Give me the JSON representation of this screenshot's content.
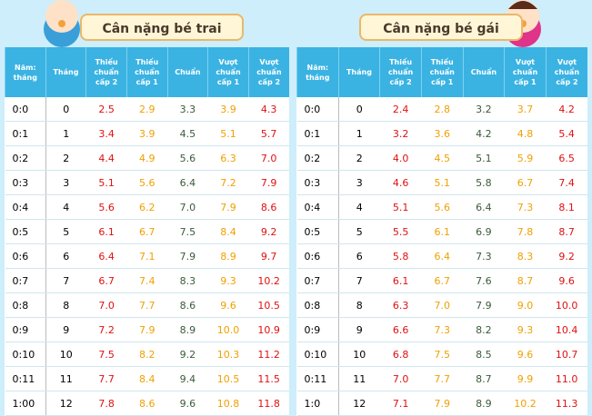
{
  "boys": {
    "title": "Cân nặng bé trai",
    "headers": [
      "Năm: tháng",
      "Tháng",
      "Thiếu chuẩn cấp 2",
      "Thiếu chuẩn cấp 1",
      "Chuẩn",
      "Vượt chuẩn cấp 1",
      "Vượt chuẩn cấp 2"
    ],
    "rows": [
      [
        "0:0",
        "0",
        "2.5",
        "2.9",
        "3.3",
        "3.9",
        "4.3"
      ],
      [
        "0:1",
        "1",
        "3.4",
        "3.9",
        "4.5",
        "5.1",
        "5.7"
      ],
      [
        "0:2",
        "2",
        "4.4",
        "4.9",
        "5.6",
        "6.3",
        "7.0"
      ],
      [
        "0:3",
        "3",
        "5.1",
        "5.6",
        "6.4",
        "7.2",
        "7.9"
      ],
      [
        "0:4",
        "4",
        "5.6",
        "6.2",
        "7.0",
        "7.9",
        "8.6"
      ],
      [
        "0:5",
        "5",
        "6.1",
        "6.7",
        "7.5",
        "8.4",
        "9.2"
      ],
      [
        "0:6",
        "6",
        "6.4",
        "7.1",
        "7.9",
        "8.9",
        "9.7"
      ],
      [
        "0:7",
        "7",
        "6.7",
        "7.4",
        "8.3",
        "9.3",
        "10.2"
      ],
      [
        "0:8",
        "8",
        "7.0",
        "7.7",
        "8.6",
        "9.6",
        "10.5"
      ],
      [
        "0:9",
        "9",
        "7.2",
        "7.9",
        "8.9",
        "10.0",
        "10.9"
      ],
      [
        "0:10",
        "10",
        "7.5",
        "8.2",
        "9.2",
        "10.3",
        "11.2"
      ],
      [
        "0:11",
        "11",
        "7.7",
        "8.4",
        "9.4",
        "10.5",
        "11.5"
      ],
      [
        "1:00",
        "12",
        "7.8",
        "8.6",
        "9.6",
        "10.8",
        "11.8"
      ]
    ]
  },
  "girls": {
    "title": "Cân nặng bé gái",
    "headers": [
      "Năm: tháng",
      "Tháng",
      "Thiếu chuẩn cấp 2",
      "Thiếu chuẩn cấp 1",
      "Chuẩn",
      "Vượt chuẩn cấp 1",
      "Vượt chuẩn cấp 2"
    ],
    "rows": [
      [
        "0:0",
        "0",
        "2.4",
        "2.8",
        "3.2",
        "3.7",
        "4.2"
      ],
      [
        "0:1",
        "1",
        "3.2",
        "3.6",
        "4.2",
        "4.8",
        "5.4"
      ],
      [
        "0:2",
        "2",
        "4.0",
        "4.5",
        "5.1",
        "5.9",
        "6.5"
      ],
      [
        "0:3",
        "3",
        "4.6",
        "5.1",
        "5.8",
        "6.7",
        "7.4"
      ],
      [
        "0:4",
        "4",
        "5.1",
        "5.6",
        "6.4",
        "7.3",
        "8.1"
      ],
      [
        "0:5",
        "5",
        "5.5",
        "6.1",
        "6.9",
        "7.8",
        "8.7"
      ],
      [
        "0:6",
        "6",
        "5.8",
        "6.4",
        "7.3",
        "8.3",
        "9.2"
      ],
      [
        "0:7",
        "7",
        "6.1",
        "6.7",
        "7.6",
        "8.7",
        "9.6"
      ],
      [
        "0:8",
        "8",
        "6.3",
        "7.0",
        "7.9",
        "9.0",
        "10.0"
      ],
      [
        "0:9",
        "9",
        "6.6",
        "7.3",
        "8.2",
        "9.3",
        "10.4"
      ],
      [
        "0:10",
        "10",
        "6.8",
        "7.5",
        "8.5",
        "9.6",
        "10.7"
      ],
      [
        "0:11",
        "11",
        "7.0",
        "7.7",
        "8.7",
        "9.9",
        "11.0"
      ],
      [
        "1:0",
        "12",
        "7.1",
        "7.9",
        "8.9",
        "10.2",
        "11.3"
      ]
    ]
  }
}
